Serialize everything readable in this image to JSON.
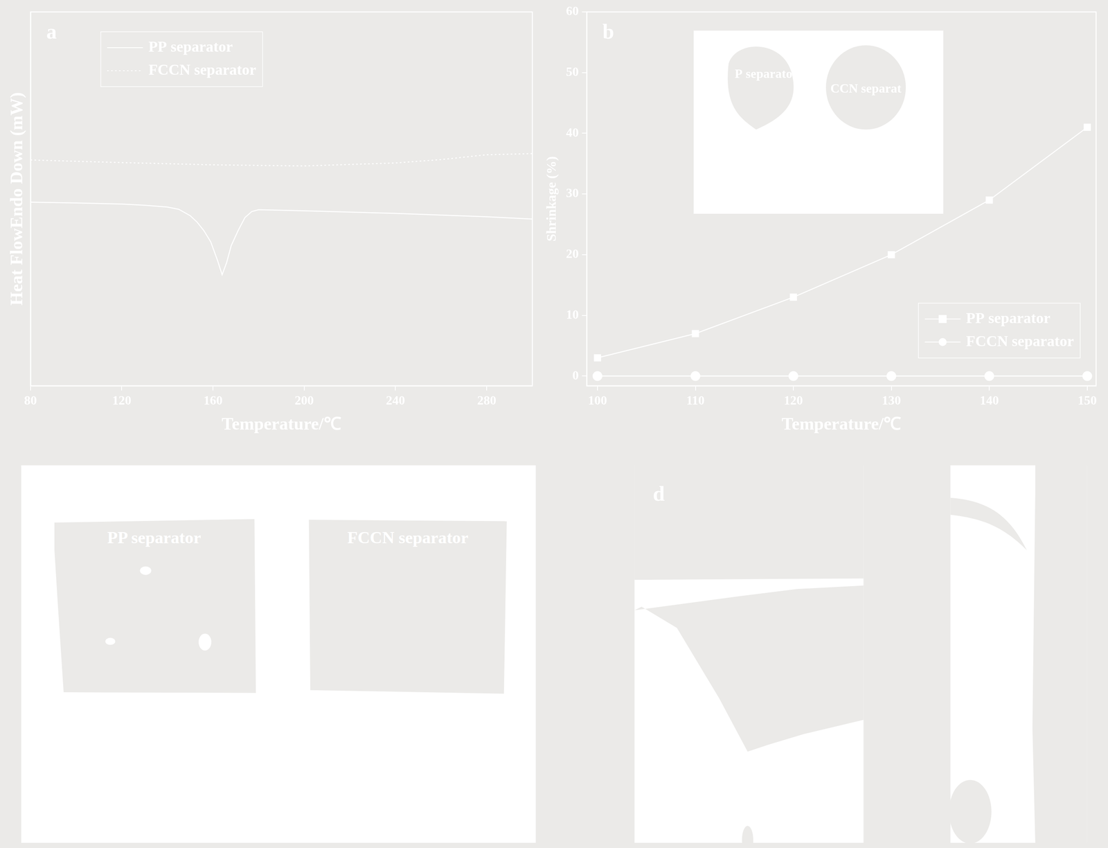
{
  "chart_data": [
    {
      "type": "line",
      "title": "a",
      "x_label": "Temperature/℃",
      "y_label": "Heat FlowEndo Down (mW)",
      "xlim": [
        80,
        300
      ],
      "xticks": [
        80,
        120,
        160,
        200,
        240,
        280
      ],
      "ylim": [
        0,
        100
      ],
      "yticks": [],
      "tick_labels": "x",
      "grid": false,
      "legend": "upper left",
      "series": [
        {
          "name": "PP separator",
          "color": "#ffffff",
          "line_style": "solid",
          "x": [
            80,
            100,
            120,
            130,
            140,
            145,
            150,
            153,
            156,
            159,
            162,
            164,
            166,
            168,
            171,
            174,
            177,
            180,
            200,
            240,
            280,
            300
          ],
          "values": [
            49.1,
            48.9,
            48.6,
            48.3,
            47.8,
            47.2,
            45.5,
            43.8,
            41.5,
            38.5,
            33.5,
            29.7,
            33.0,
            37.5,
            41.5,
            45.0,
            46.6,
            47.1,
            46.8,
            46.1,
            45.2,
            44.6
          ]
        },
        {
          "name": "FCCN separator",
          "color": "#ffffff",
          "line_style": "dotted",
          "x": [
            80,
            120,
            160,
            200,
            240,
            260,
            280,
            300
          ],
          "values": [
            60.4,
            59.7,
            59.1,
            58.8,
            59.6,
            60.5,
            61.8,
            62.1
          ]
        }
      ]
    },
    {
      "type": "line",
      "title": "b",
      "x_label": "Temperature/℃",
      "y_label": "Shrinkage (%)",
      "x": [
        100,
        110,
        120,
        130,
        140,
        150
      ],
      "xlim": [
        98.9,
        150.9
      ],
      "xticks": [
        100,
        110,
        120,
        130,
        140,
        150
      ],
      "ylim": [
        -1.6,
        60
      ],
      "yticks": [
        0,
        10,
        20,
        30,
        40,
        50,
        60
      ],
      "grid": false,
      "legend": "lower right",
      "annotations": [
        "P separato",
        "CCN separat"
      ],
      "series": [
        {
          "name": "PP separator",
          "color": "#ffffff",
          "marker": "square",
          "line_style": "solid",
          "values": [
            3,
            7,
            13,
            20,
            29,
            41
          ]
        },
        {
          "name": "FCCN separator",
          "color": "#ffffff",
          "marker": "circle",
          "line_style": "solid",
          "values": [
            0,
            0,
            0,
            0,
            0,
            0
          ]
        }
      ]
    }
  ],
  "photos": [
    {
      "labels": [
        "PP separator",
        "FCCN separator"
      ]
    },
    {
      "label": "d"
    }
  ]
}
